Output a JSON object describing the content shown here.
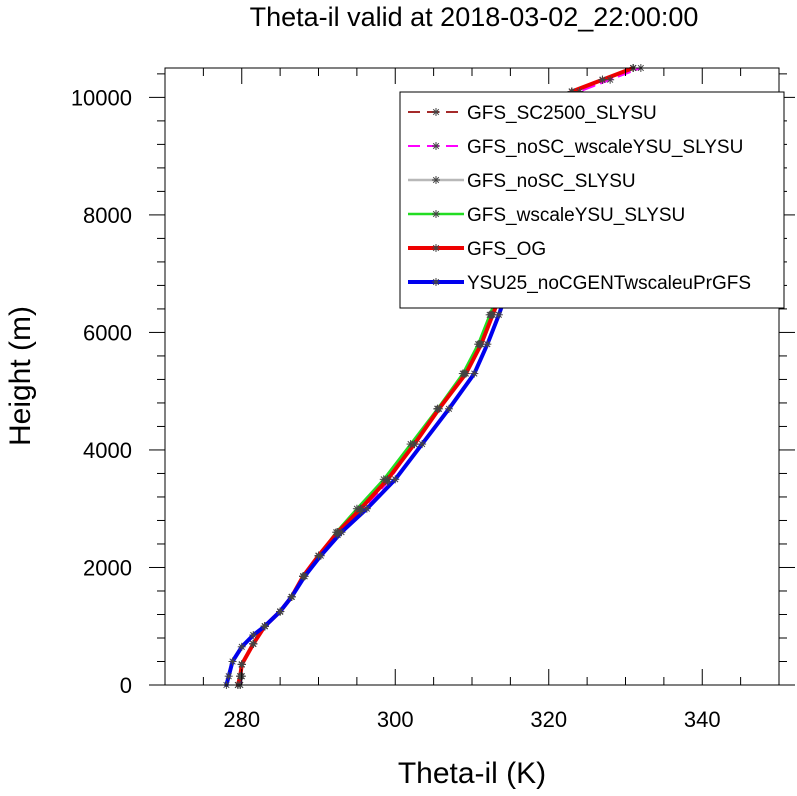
{
  "chart_data": {
    "type": "line",
    "title": "Theta-il valid at 2018-03-02_22:00:00",
    "xlabel": "Theta-il (K)",
    "ylabel": "Height (m)",
    "xlim": [
      270,
      350
    ],
    "ylim": [
      0,
      10500
    ],
    "x_ticks": [
      280,
      300,
      320,
      340
    ],
    "y_ticks": [
      0,
      2000,
      4000,
      6000,
      8000,
      10000
    ],
    "x_ticks_fmt": [
      "280",
      "300",
      "320",
      "340"
    ],
    "y_ticks_fmt": [
      "0",
      "2000",
      "4000",
      "6000",
      "8000",
      "10000"
    ],
    "grid": false,
    "legend_position": "top-right",
    "series": [
      {
        "name": "GFS_SC2500_SLYSU",
        "color": "#a52a2a",
        "dash": "dashed",
        "width": 2,
        "points": [
          [
            279.8,
            0
          ],
          [
            280,
            150
          ],
          [
            280,
            350
          ],
          [
            281.5,
            700
          ],
          [
            283,
            1000
          ],
          [
            285,
            1250
          ],
          [
            286.5,
            1500
          ],
          [
            288,
            1850
          ],
          [
            290,
            2200
          ],
          [
            292.5,
            2600
          ],
          [
            295.5,
            3000
          ],
          [
            299,
            3500
          ],
          [
            302.5,
            4100
          ],
          [
            305.5,
            4700
          ],
          [
            309,
            5300
          ],
          [
            311,
            5800
          ],
          [
            312.5,
            6300
          ],
          [
            314,
            6800
          ],
          [
            315.5,
            7300
          ],
          [
            317,
            7800
          ],
          [
            317.8,
            8300
          ],
          [
            318.5,
            8800
          ],
          [
            319,
            9300
          ],
          [
            320,
            9600
          ],
          [
            321,
            9900
          ],
          [
            323,
            10100
          ],
          [
            327,
            10300
          ],
          [
            331,
            10500
          ]
        ]
      },
      {
        "name": "GFS_noSC_wscaleYSU_SLYSU",
        "color": "#ff00ff",
        "dash": "dashed",
        "width": 2,
        "points": [
          [
            279.8,
            0
          ],
          [
            280,
            150
          ],
          [
            280,
            350
          ],
          [
            281.5,
            700
          ],
          [
            283,
            1000
          ],
          [
            285,
            1250
          ],
          [
            286.5,
            1500
          ],
          [
            288,
            1850
          ],
          [
            290,
            2200
          ],
          [
            292.5,
            2550
          ],
          [
            295.5,
            2950
          ],
          [
            299,
            3450
          ],
          [
            302.5,
            4100
          ],
          [
            305.5,
            4700
          ],
          [
            309,
            5300
          ],
          [
            311,
            5800
          ],
          [
            312.5,
            6300
          ],
          [
            314,
            6800
          ],
          [
            315.5,
            7300
          ],
          [
            317,
            7800
          ],
          [
            318,
            8300
          ],
          [
            318.7,
            8800
          ],
          [
            319.5,
            9300
          ],
          [
            320.5,
            9600
          ],
          [
            321.5,
            9900
          ],
          [
            324,
            10100
          ],
          [
            328,
            10300
          ],
          [
            332,
            10500
          ]
        ]
      },
      {
        "name": "GFS_noSC_SLYSU",
        "color": "#b8b8b8",
        "dash": "solid",
        "width": 2.5,
        "points": [
          [
            279.5,
            0
          ],
          [
            279.8,
            150
          ],
          [
            280,
            350
          ],
          [
            281.5,
            700
          ],
          [
            283,
            1000
          ],
          [
            285,
            1250
          ],
          [
            286.5,
            1500
          ],
          [
            288,
            1850
          ],
          [
            290,
            2200
          ],
          [
            292.5,
            2600
          ],
          [
            295.5,
            3000
          ],
          [
            299,
            3500
          ],
          [
            302.5,
            4100
          ],
          [
            305.5,
            4700
          ],
          [
            309,
            5300
          ],
          [
            311,
            5800
          ],
          [
            312.5,
            6300
          ],
          [
            314,
            6800
          ],
          [
            315.5,
            7300
          ],
          [
            317,
            7800
          ],
          [
            317.8,
            8300
          ],
          [
            318.5,
            8800
          ],
          [
            319,
            9300
          ],
          [
            320,
            9600
          ],
          [
            321,
            9900
          ],
          [
            323,
            10100
          ],
          [
            327,
            10300
          ],
          [
            331,
            10500
          ]
        ]
      },
      {
        "name": "GFS_wscaleYSU_SLYSU",
        "color": "#22dd22",
        "dash": "solid",
        "width": 2.5,
        "points": [
          [
            279.5,
            0
          ],
          [
            279.8,
            150
          ],
          [
            280,
            350
          ],
          [
            281.5,
            700
          ],
          [
            283,
            1000
          ],
          [
            285,
            1250
          ],
          [
            286.5,
            1500
          ],
          [
            288,
            1850
          ],
          [
            290,
            2200
          ],
          [
            292.3,
            2600
          ],
          [
            295,
            3000
          ],
          [
            298.5,
            3500
          ],
          [
            302,
            4100
          ],
          [
            305.5,
            4700
          ],
          [
            308.8,
            5300
          ],
          [
            310.8,
            5800
          ],
          [
            312.3,
            6300
          ],
          [
            313.8,
            6800
          ],
          [
            315.3,
            7300
          ],
          [
            316.8,
            7800
          ],
          [
            317.7,
            8300
          ],
          [
            318.4,
            8800
          ],
          [
            319,
            9300
          ],
          [
            320,
            9600
          ],
          [
            321,
            9900
          ],
          [
            323,
            10100
          ],
          [
            327,
            10300
          ],
          [
            331,
            10500
          ]
        ]
      },
      {
        "name": "GFS_OG",
        "color": "#ee0000",
        "dash": "solid",
        "width": 4,
        "points": [
          [
            279.5,
            0
          ],
          [
            279.8,
            150
          ],
          [
            280,
            350
          ],
          [
            281.5,
            700
          ],
          [
            283,
            1000
          ],
          [
            285,
            1250
          ],
          [
            286.5,
            1500
          ],
          [
            288,
            1850
          ],
          [
            290,
            2200
          ],
          [
            292.5,
            2600
          ],
          [
            295.5,
            3000
          ],
          [
            299,
            3500
          ],
          [
            302.5,
            4100
          ],
          [
            305.7,
            4700
          ],
          [
            309.2,
            5300
          ],
          [
            311.2,
            5800
          ],
          [
            312.7,
            6300
          ],
          [
            314.2,
            6800
          ],
          [
            315.5,
            7300
          ],
          [
            316.8,
            7800
          ],
          [
            317.6,
            8300
          ],
          [
            318.3,
            8800
          ],
          [
            318.9,
            9300
          ],
          [
            319.7,
            9600
          ],
          [
            320.8,
            9900
          ],
          [
            323,
            10100
          ],
          [
            327,
            10300
          ],
          [
            331,
            10500
          ]
        ]
      },
      {
        "name": "YSU25_noCGENTwscaleuPrGFS",
        "color": "#0000ee",
        "dash": "solid",
        "width": 4,
        "points": [
          [
            278,
            0
          ],
          [
            278.3,
            150
          ],
          [
            278.8,
            400
          ],
          [
            280,
            650
          ],
          [
            281.5,
            850
          ],
          [
            283,
            1000
          ],
          [
            285,
            1250
          ],
          [
            286.5,
            1500
          ],
          [
            288.2,
            1850
          ],
          [
            290.3,
            2200
          ],
          [
            293,
            2600
          ],
          [
            296.3,
            3000
          ],
          [
            300,
            3500
          ],
          [
            303.5,
            4100
          ],
          [
            307,
            4700
          ],
          [
            310.3,
            5300
          ],
          [
            312,
            5800
          ],
          [
            313.5,
            6300
          ],
          [
            314.8,
            6800
          ],
          [
            315.8,
            7300
          ],
          [
            316.8,
            7800
          ],
          [
            317.4,
            8300
          ],
          [
            317.8,
            8800
          ],
          [
            318.1,
            9300
          ],
          [
            318.6,
            9700
          ]
        ]
      }
    ]
  }
}
